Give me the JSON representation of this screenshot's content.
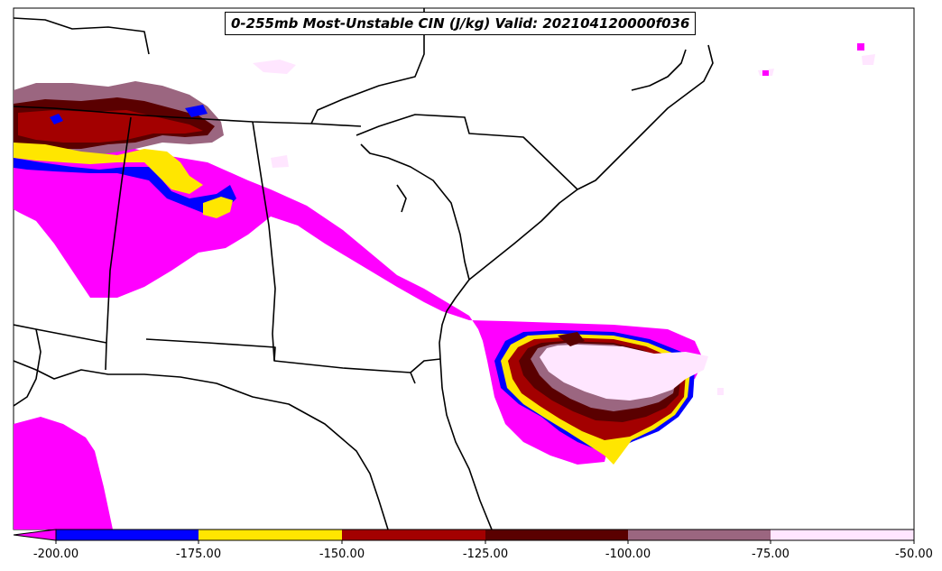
{
  "title": "0-255mb Most-Unstable CIN (J/kg) Valid: 202104120000f036",
  "colorbar": {
    "extend": "min",
    "levels": [
      {
        "label": "-200.00",
        "value": -200
      },
      {
        "label": "-175.00",
        "value": -175
      },
      {
        "label": "-150.00",
        "value": -150
      },
      {
        "label": "-125.00",
        "value": -125
      },
      {
        "label": "-100.00",
        "value": -100
      },
      {
        "label": "-75.00",
        "value": -75
      },
      {
        "label": "-50.00",
        "value": -50
      }
    ],
    "under_color": "#ff00ff",
    "colors": [
      "#0000ff",
      "#ffe600",
      "#a30000",
      "#5a0000",
      "#9b6680",
      "#ffe6ff"
    ]
  },
  "map": {
    "region": "Southeastern United States",
    "features": [
      "state borders",
      "coastlines",
      "filled CIN contours"
    ]
  }
}
